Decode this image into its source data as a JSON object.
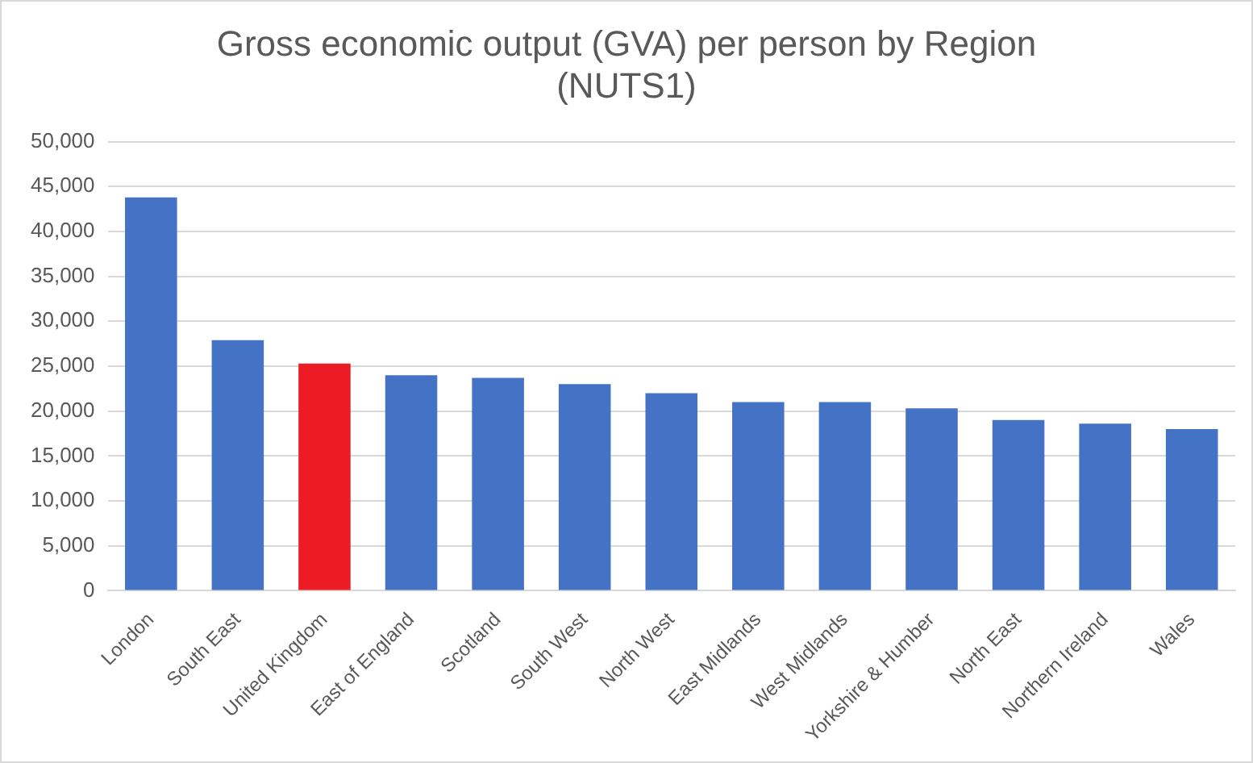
{
  "chart_data": {
    "type": "bar",
    "title": [
      "Gross economic output (GVA) per person by Region",
      "(NUTS1)"
    ],
    "categories": [
      "London",
      "South East",
      "United Kingdom",
      "East of England",
      "Scotland",
      "South West",
      "North West",
      "East Midlands",
      "West Midlands",
      "Yorkshire & Humber",
      "North East",
      "Northern Ireland",
      "Wales"
    ],
    "values": [
      43800,
      27900,
      25300,
      24000,
      23700,
      23000,
      22000,
      21000,
      21000,
      20300,
      19000,
      18600,
      18000
    ],
    "colors": [
      "#4472c4",
      "#4472c4",
      "#ed1c24",
      "#4472c4",
      "#4472c4",
      "#4472c4",
      "#4472c4",
      "#4472c4",
      "#4472c4",
      "#4472c4",
      "#4472c4",
      "#4472c4",
      "#4472c4"
    ],
    "ylim": [
      0,
      50000
    ],
    "yticks": [
      0,
      {
        "value": 5000,
        "label": "5,000"
      },
      {
        "value": 10000,
        "label": "10,000"
      },
      {
        "value": 15000,
        "label": "15,000"
      },
      {
        "value": 20000,
        "label": "20,000"
      },
      {
        "value": 25000,
        "label": "25,000"
      },
      {
        "value": 30000,
        "label": "30,000"
      },
      {
        "value": 35000,
        "label": "35,000"
      },
      {
        "value": 40000,
        "label": "40,000"
      },
      {
        "value": 45000,
        "label": "45,000"
      },
      {
        "value": 50000,
        "label": "50,000"
      }
    ],
    "grid": "y"
  }
}
